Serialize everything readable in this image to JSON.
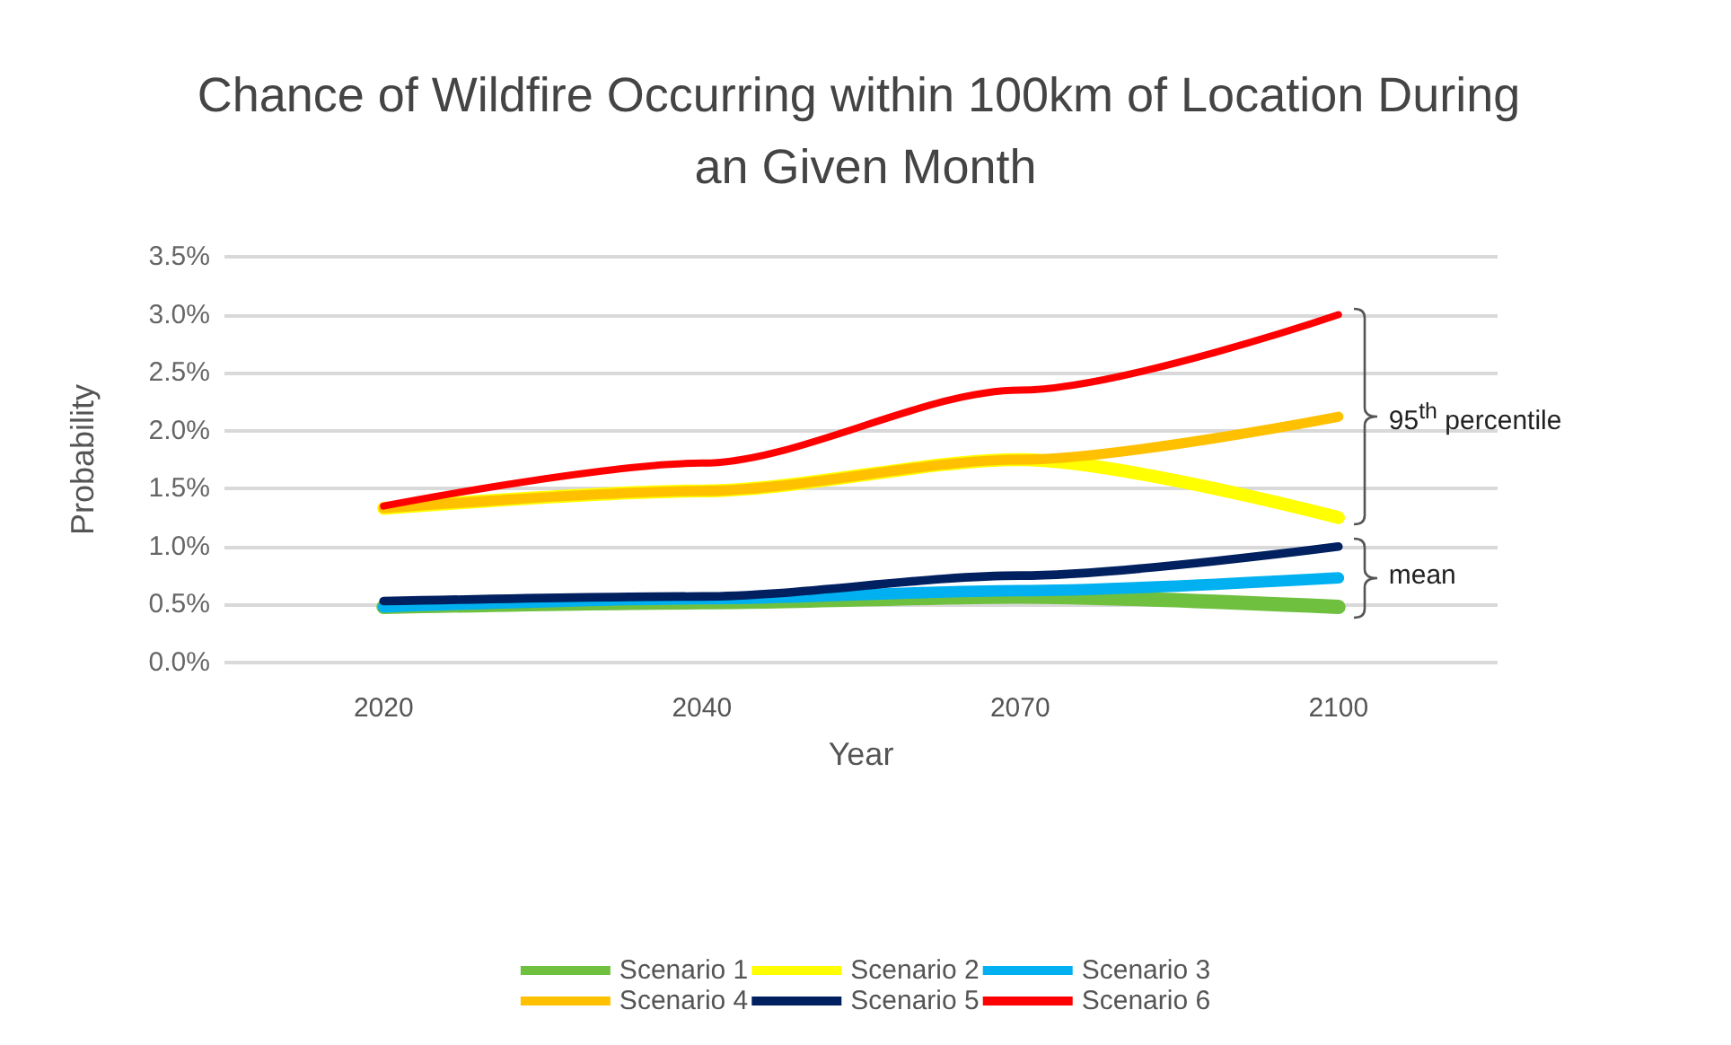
{
  "chart_data": {
    "type": "line",
    "title": "Chance of Wildfire Occurring within 100km of Location During an Given Month",
    "xlabel": "Year",
    "ylabel": "Probability",
    "categories": [
      "2020",
      "2040",
      "2070",
      "2100"
    ],
    "series": [
      {
        "name": "Scenario 1",
        "color": "#70c040",
        "values": [
          0.48,
          0.52,
          0.57,
          0.48
        ]
      },
      {
        "name": "Scenario 2",
        "color": "#ffff00",
        "values": [
          1.33,
          1.48,
          1.75,
          1.25
        ]
      },
      {
        "name": "Scenario 3",
        "color": "#00b0f0",
        "values": [
          0.48,
          0.55,
          0.62,
          0.73
        ]
      },
      {
        "name": "Scenario 4",
        "color": "#ffc000",
        "values": [
          1.33,
          1.48,
          1.75,
          2.12
        ]
      },
      {
        "name": "Scenario 5",
        "color": "#002060",
        "values": [
          0.53,
          0.57,
          0.75,
          1.0
        ]
      },
      {
        "name": "Scenario 6",
        "color": "#ff0000",
        "values": [
          1.35,
          1.72,
          2.35,
          3.0
        ]
      }
    ],
    "ylim": [
      0,
      3.5
    ],
    "yticks": [
      {
        "value": 0,
        "label": "0.0%"
      },
      {
        "value": 0.5,
        "label": "0.5%"
      },
      {
        "value": 1,
        "label": "1.0%"
      },
      {
        "value": 1.5,
        "label": "1.5%"
      },
      {
        "value": 2,
        "label": "2.0%"
      },
      {
        "value": 2.5,
        "label": "2.5%"
      },
      {
        "value": 3,
        "label": "3.0%"
      },
      {
        "value": 3.5,
        "label": "3.5%"
      }
    ],
    "annotations": [
      {
        "text": "95$^{th}$ percentile",
        "x": "2100",
        "y": 2.12
      },
      {
        "text": "mean",
        "x": "2100",
        "y": 0.73
      }
    ],
    "grid": "y",
    "legend": "bottom",
    "marker": "none",
    "line_style": "solid"
  }
}
